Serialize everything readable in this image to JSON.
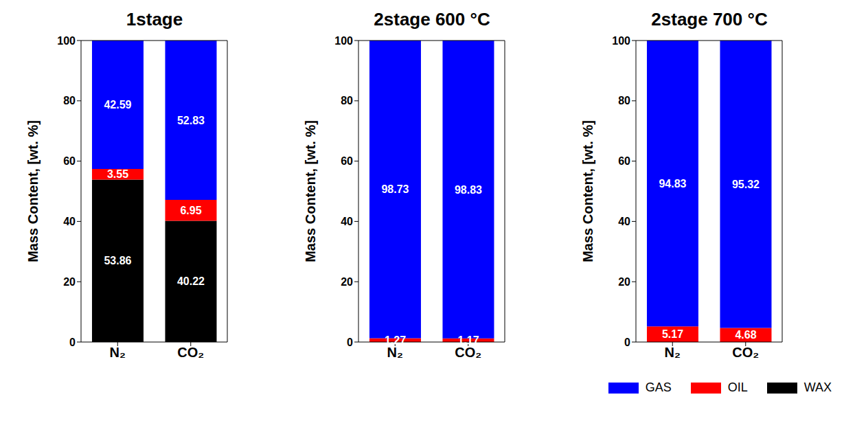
{
  "chart_data": [
    {
      "type": "bar",
      "title": "1stage",
      "y_label": "Mass Content, [wt. %]",
      "categories": [
        "N₂",
        "CO₂"
      ],
      "stacked": true,
      "data_labels": true,
      "ylim": [
        0,
        100
      ],
      "yticks": [
        0,
        20,
        40,
        60,
        80,
        100
      ],
      "series": [
        {
          "name": "GAS",
          "color": "#0000ff",
          "values": [
            42.59,
            52.83
          ]
        },
        {
          "name": "OIL",
          "color": "#ff0000",
          "values": [
            3.55,
            6.95
          ]
        },
        {
          "name": "WAX",
          "color": "#000000",
          "values": [
            53.86,
            40.22
          ]
        }
      ]
    },
    {
      "type": "bar",
      "title": "2stage 600 °C",
      "y_label": "Mass Content, [wt. %]",
      "categories": [
        "N₂",
        "CO₂"
      ],
      "stacked": true,
      "data_labels": true,
      "ylim": [
        0,
        100
      ],
      "yticks": [
        0,
        20,
        40,
        60,
        80,
        100
      ],
      "series": [
        {
          "name": "GAS",
          "color": "#0000ff",
          "values": [
            98.73,
            98.83
          ]
        },
        {
          "name": "OIL",
          "color": "#ff0000",
          "values": [
            1.27,
            1.17
          ]
        }
      ]
    },
    {
      "type": "bar",
      "title": "2stage 700 °C",
      "y_label": "Mass Content, [wt. %]",
      "categories": [
        "N₂",
        "CO₂"
      ],
      "stacked": true,
      "data_labels": true,
      "ylim": [
        0,
        100
      ],
      "yticks": [
        0,
        20,
        40,
        60,
        80,
        100
      ],
      "legend": "lower right",
      "series": [
        {
          "name": "GAS",
          "color": "#0000ff",
          "values": [
            94.83,
            95.32
          ]
        },
        {
          "name": "OIL",
          "color": "#ff0000",
          "values": [
            5.17,
            4.68
          ]
        }
      ]
    }
  ]
}
